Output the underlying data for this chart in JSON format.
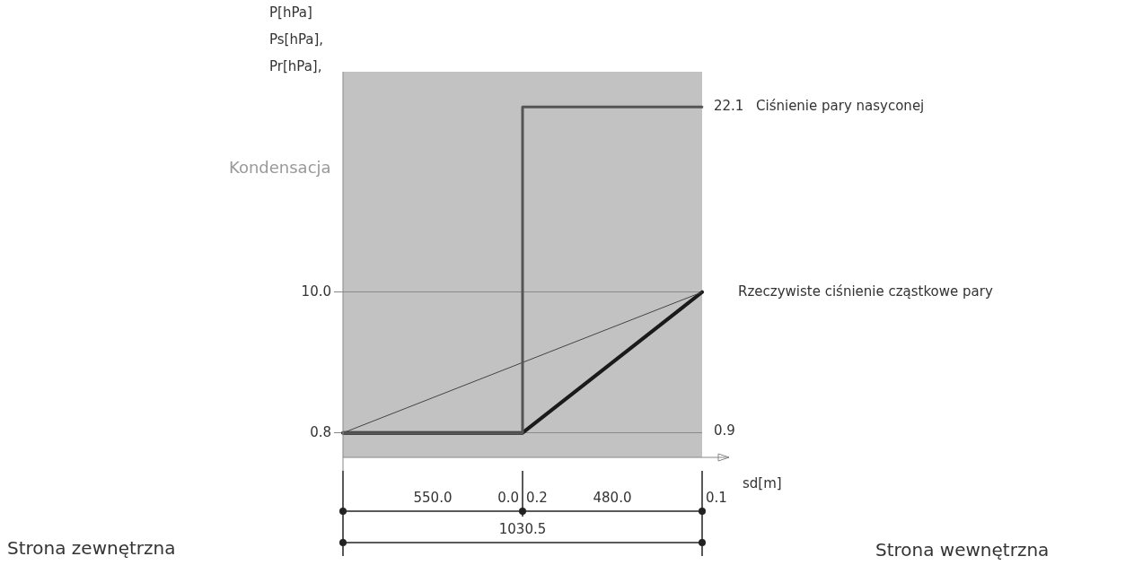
{
  "chart_data": {
    "type": "line",
    "ylabel": "P[hPa]\nPs[hPa],\nPr[hPa],",
    "xlabel": "sd[m]",
    "categories": [
      null,
      null,
      null
    ],
    "ylim": [
      -0.8,
      24.4
    ],
    "yticks": [
      0.8,
      {
        "value": 10,
        "label": "10.0"
      }
    ],
    "y2lim": [
      -0.8,
      24.4
    ],
    "y2ticks": [
      0.9,
      22.1
    ],
    "tick_labels": "y",
    "grid": "y",
    "legend": false,
    "series": [
      {
        "name": "Ciśnienie pary nasyconej",
        "type": "step",
        "color": "#555555",
        "values": [
          0.8,
          22.1,
          22.1
        ],
        "axis": "y2"
      },
      {
        "name": "Rzeczywiste ciśnienie cząstkowe pary",
        "color": "#444444",
        "values": [
          0.8,
          5.4,
          10.0
        ]
      },
      {
        "color": "#1a1a1a",
        "values": [
          0.8,
          0.8,
          10.0
        ]
      }
    ],
    "annotations": [
      "Kondensacja",
      "550.0",
      "0.0",
      "0.2",
      "480.0",
      "0.1",
      "1030.5",
      "Strona zewnętrzna",
      "Strona wewnętrzna"
    ]
  }
}
